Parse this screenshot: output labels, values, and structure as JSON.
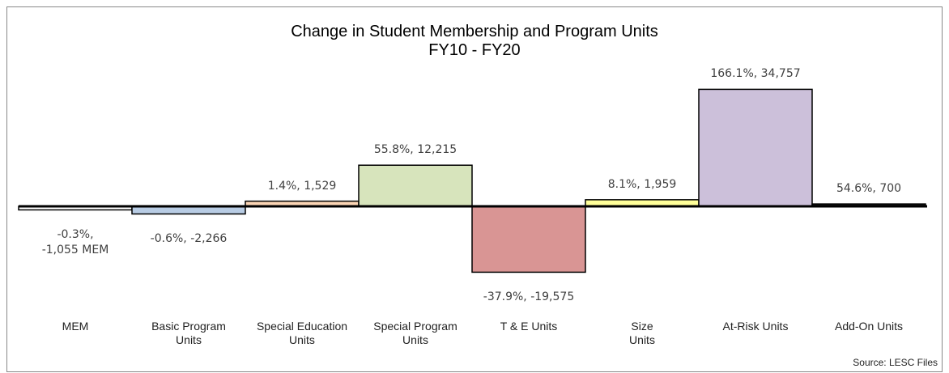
{
  "chart_data": {
    "type": "bar",
    "title": "Change in Student Membership and Program Units",
    "subtitle": "FY10 - FY20",
    "categories": [
      "MEM",
      "Basic Program\nUnits",
      "Special Education\nUnits",
      "Special Program\nUnits",
      "T & E Units",
      "Size\nUnits",
      "At-Risk Units",
      "Add-On Units"
    ],
    "values": [
      -1055,
      -2266,
      1529,
      12215,
      -19575,
      1959,
      34757,
      700
    ],
    "value_labels": [
      "-0.3%,\n-1,055 MEM",
      "-0.6%, -2,266",
      "1.4%, 1,529",
      "55.8%, 12,215",
      "-37.9%, -19,575",
      "8.1%, 1,959",
      "166.1%, 34,757",
      "54.6%, 700"
    ],
    "colors": [
      "#ffffff",
      "#b8cce4",
      "#fbd4b4",
      "#d7e4bc",
      "#d99594",
      "#ffff99",
      "#ccc0da",
      "#1a1a1a"
    ],
    "source": "Source: LESC Files"
  }
}
